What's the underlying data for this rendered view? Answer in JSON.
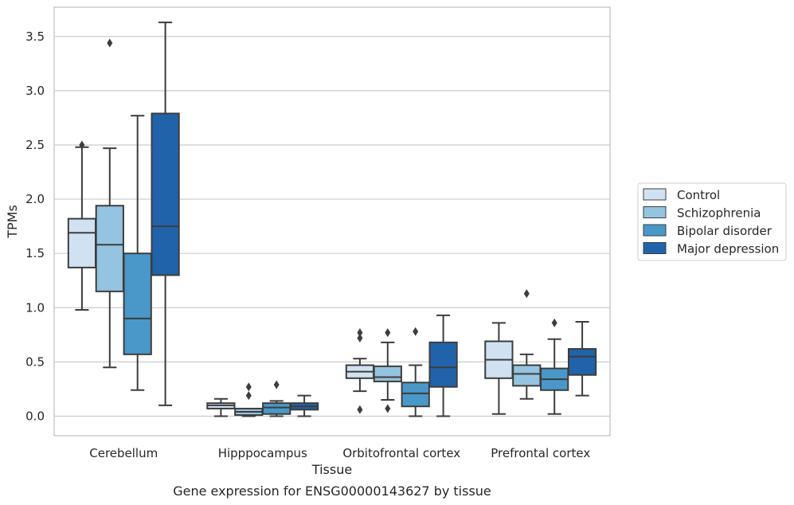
{
  "chart_data": {
    "type": "box",
    "title": "",
    "caption": "Gene expression for ENSG00000143627 by tissue",
    "xlabel": "Tissue",
    "ylabel": "TPMs",
    "ylim": [
      -0.18,
      3.77
    ],
    "yticks": [
      "0.0",
      "0.5",
      "1.0",
      "1.5",
      "2.0",
      "2.5",
      "3.0",
      "3.5"
    ],
    "grid": "horizontal",
    "legend_position": "right",
    "categories": [
      "Cerebellum",
      "Hipppocampus",
      "Orbitofrontal cortex",
      "Prefrontal cortex"
    ],
    "series": [
      {
        "name": "Control",
        "color": "#d0e1f2",
        "boxes": [
          {
            "min": 0.98,
            "q1": 1.37,
            "median": 1.69,
            "q3": 1.82,
            "max": 2.48,
            "outliers": [
              2.5
            ]
          },
          {
            "min": 0.0,
            "q1": 0.07,
            "median": 0.1,
            "q3": 0.12,
            "max": 0.16,
            "outliers": []
          },
          {
            "min": 0.23,
            "q1": 0.35,
            "median": 0.41,
            "q3": 0.47,
            "max": 0.53,
            "outliers": [
              0.77,
              0.72,
              0.06
            ]
          },
          {
            "min": 0.02,
            "q1": 0.35,
            "median": 0.52,
            "q3": 0.69,
            "max": 0.86,
            "outliers": []
          }
        ]
      },
      {
        "name": "Schizophrenia",
        "color": "#94c4df",
        "boxes": [
          {
            "min": 0.45,
            "q1": 1.15,
            "median": 1.58,
            "q3": 1.94,
            "max": 2.47,
            "outliers": [
              3.44
            ]
          },
          {
            "min": 0.0,
            "q1": 0.01,
            "median": 0.04,
            "q3": 0.07,
            "max": 0.07,
            "outliers": [
              0.27,
              0.19
            ]
          },
          {
            "min": 0.15,
            "q1": 0.32,
            "median": 0.36,
            "q3": 0.46,
            "max": 0.68,
            "outliers": [
              0.77,
              0.07
            ]
          },
          {
            "min": 0.16,
            "q1": 0.28,
            "median": 0.39,
            "q3": 0.47,
            "max": 0.57,
            "outliers": [
              1.13
            ]
          }
        ]
      },
      {
        "name": "Bipolar disorder",
        "color": "#4a98c9",
        "boxes": [
          {
            "min": 0.24,
            "q1": 0.57,
            "median": 0.9,
            "q3": 1.5,
            "max": 2.77,
            "outliers": []
          },
          {
            "min": 0.0,
            "q1": 0.02,
            "median": 0.08,
            "q3": 0.12,
            "max": 0.14,
            "outliers": [
              0.29
            ]
          },
          {
            "min": 0.0,
            "q1": 0.09,
            "median": 0.21,
            "q3": 0.31,
            "max": 0.47,
            "outliers": [
              0.78
            ]
          },
          {
            "min": 0.02,
            "q1": 0.24,
            "median": 0.34,
            "q3": 0.44,
            "max": 0.71,
            "outliers": [
              0.86
            ]
          }
        ]
      },
      {
        "name": "Major depression",
        "color": "#2163aa",
        "boxes": [
          {
            "min": 0.1,
            "q1": 1.3,
            "median": 1.75,
            "q3": 2.79,
            "max": 3.63,
            "outliers": []
          },
          {
            "min": 0.0,
            "q1": 0.06,
            "median": 0.09,
            "q3": 0.12,
            "max": 0.19,
            "outliers": []
          },
          {
            "min": 0.0,
            "q1": 0.27,
            "median": 0.45,
            "q3": 0.68,
            "max": 0.93,
            "outliers": []
          },
          {
            "min": 0.19,
            "q1": 0.38,
            "median": 0.55,
            "q3": 0.62,
            "max": 0.87,
            "outliers": []
          }
        ]
      }
    ]
  }
}
